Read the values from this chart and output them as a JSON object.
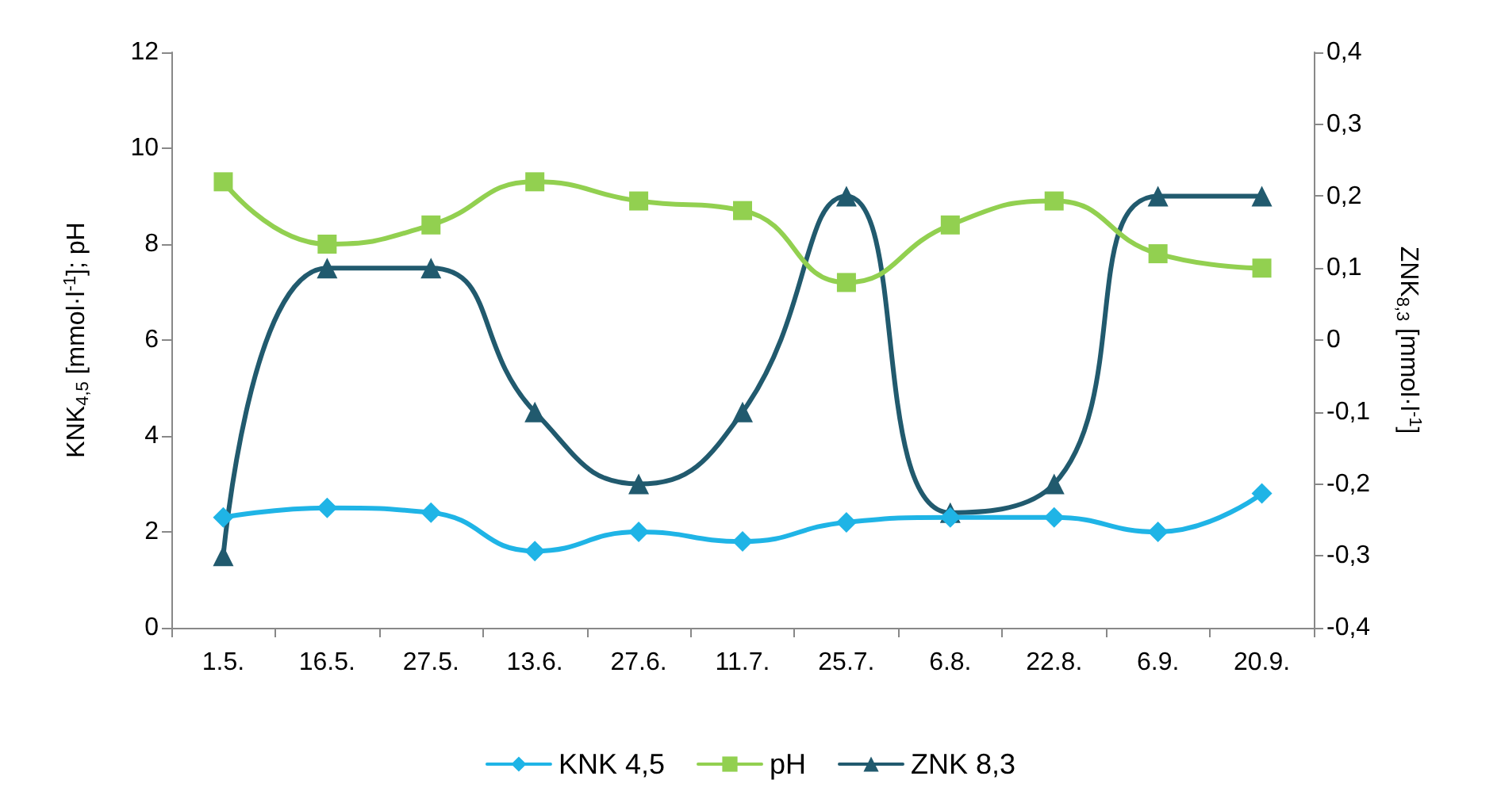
{
  "chart_data": {
    "type": "line",
    "categories": [
      "1.5.",
      "16.5.",
      "27.5.",
      "13.6.",
      "27.6.",
      "11.7.",
      "25.7.",
      "6.8.",
      "22.8.",
      "6.9.",
      "20.9."
    ],
    "ylabel": "KNK$_{4,5}$ [mmol·l$^{-1}$]; pH",
    "y2label": "ZNK$_{8,3}$ [mmol·l$^{-1}$]",
    "ylim": [
      0,
      12
    ],
    "yticks": [
      0,
      2,
      4,
      6,
      8,
      10,
      12
    ],
    "y2lim": [
      -0.4,
      0.4
    ],
    "y2ticks": [
      {
        "value": -0.4,
        "label": "-0,4"
      },
      {
        "value": -0.3,
        "label": "-0,3"
      },
      {
        "value": -0.2,
        "label": "-0,2"
      },
      {
        "value": -0.1,
        "label": "-0,1"
      },
      {
        "value": 0,
        "label": "0"
      },
      {
        "value": 0.1,
        "label": "0,1"
      },
      {
        "value": 0.2,
        "label": "0,2"
      },
      {
        "value": 0.3,
        "label": "0,3"
      },
      {
        "value": 0.4,
        "label": "0,4"
      }
    ],
    "series": [
      {
        "name": "KNK 4,5",
        "color": "#1fb4e6",
        "marker": "diamond",
        "values": [
          2.3,
          2.5,
          2.4,
          1.6,
          2.0,
          1.8,
          2.2,
          2.3,
          2.3,
          2.0,
          2.8
        ]
      },
      {
        "name": "pH",
        "color": "#92d050",
        "marker": "square",
        "values": [
          9.3,
          8.0,
          8.4,
          9.3,
          8.9,
          8.7,
          7.2,
          8.4,
          8.9,
          7.8,
          7.5
        ]
      },
      {
        "name": "ZNK 8,3",
        "color": "#215a6e",
        "marker": "triangle",
        "axis": "y2",
        "values": [
          -0.3,
          0.1,
          0.1,
          -0.1,
          -0.2,
          -0.1,
          0.2,
          -0.24,
          -0.2,
          0.2,
          0.2
        ]
      }
    ],
    "grid": false,
    "legend": "bottom",
    "line_style": "solid"
  }
}
